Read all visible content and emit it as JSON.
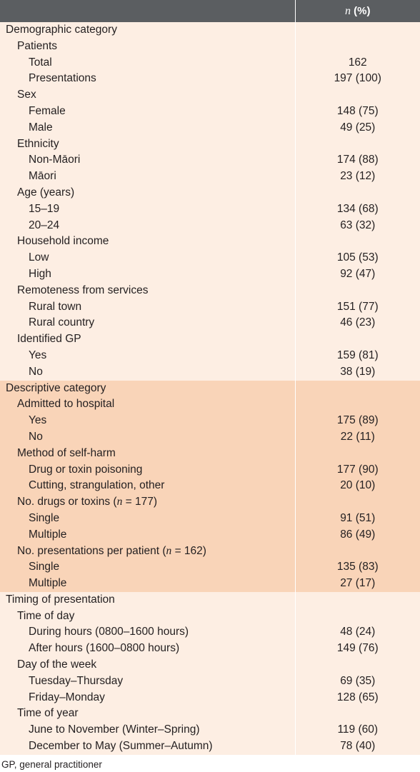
{
  "header": {
    "col1": "",
    "col2_n": "n",
    "col2_rest": " (%)"
  },
  "sections": [
    {
      "label": "Demographic category",
      "shade": "light",
      "groups": [
        {
          "label": "Patients",
          "rows": [
            {
              "label": "Total",
              "value": "162"
            },
            {
              "label": "Presentations",
              "value": "197 (100)"
            }
          ]
        },
        {
          "label": "Sex",
          "rows": [
            {
              "label": "Female",
              "value": "148 (75)"
            },
            {
              "label": "Male",
              "value": "49 (25)"
            }
          ]
        },
        {
          "label": "Ethnicity",
          "rows": [
            {
              "label": "Non-Māori",
              "value": "174 (88)"
            },
            {
              "label": "Māori",
              "value": "23 (12)"
            }
          ]
        },
        {
          "label": "Age (years)",
          "rows": [
            {
              "label": "15–19",
              "value": "134 (68)"
            },
            {
              "label": "20–24",
              "value": "63 (32)"
            }
          ]
        },
        {
          "label": "Household income",
          "rows": [
            {
              "label": "Low",
              "value": "105 (53)"
            },
            {
              "label": "High",
              "value": "92 (47)"
            }
          ]
        },
        {
          "label": "Remoteness from services",
          "rows": [
            {
              "label": "Rural town",
              "value": "151 (77)"
            },
            {
              "label": "Rural country",
              "value": "46 (23)"
            }
          ]
        },
        {
          "label": "Identified GP",
          "rows": [
            {
              "label": "Yes",
              "value": "159 (81)"
            },
            {
              "label": "No",
              "value": "38 (19)"
            }
          ]
        }
      ]
    },
    {
      "label": "Descriptive category",
      "shade": "dark",
      "groups": [
        {
          "label": "Admitted to hospital",
          "rows": [
            {
              "label": "Yes",
              "value": "175 (89)"
            },
            {
              "label": "No",
              "value": "22 (11)"
            }
          ]
        },
        {
          "label": "Method of self-harm",
          "rows": [
            {
              "label": "Drug or toxin poisoning",
              "value": "177 (90)"
            },
            {
              "label": "Cutting, strangulation, other",
              "value": "20 (10)"
            }
          ]
        },
        {
          "label": "No. drugs or toxins (",
          "label_it": "n",
          "label_tail": " = 177)",
          "rows": [
            {
              "label": "Single",
              "value": "91 (51)"
            },
            {
              "label": "Multiple",
              "value": "86 (49)"
            }
          ]
        },
        {
          "label": "No. presentations per patient (",
          "label_it": "n",
          "label_tail": " = 162)",
          "rows": [
            {
              "label": "Single",
              "value": "135 (83)"
            },
            {
              "label": "Multiple",
              "value": "27 (17)"
            }
          ]
        }
      ]
    },
    {
      "label": "Timing of presentation",
      "shade": "light",
      "groups": [
        {
          "label": "Time of day",
          "rows": [
            {
              "label": "During hours (0800–1600 hours)",
              "value": "48 (24)"
            },
            {
              "label": "After hours (1600–0800 hours)",
              "value": "149 (76)"
            }
          ]
        },
        {
          "label": "Day of the week",
          "rows": [
            {
              "label": "Tuesday–Thursday",
              "value": "69 (35)"
            },
            {
              "label": "Friday–Monday",
              "value": "128 (65)"
            }
          ]
        },
        {
          "label": "Time of year",
          "rows": [
            {
              "label": "June to November (Winter–Spring)",
              "value": "119 (60)"
            },
            {
              "label": "December to May (Summer–Autumn)",
              "value": "78 (40)"
            }
          ]
        }
      ]
    }
  ],
  "footnote": "GP, general practitioner",
  "colors": {
    "header_bg": "#5b5e61",
    "light_band": "#fdeee3",
    "dark_band": "#f9d4b8"
  }
}
